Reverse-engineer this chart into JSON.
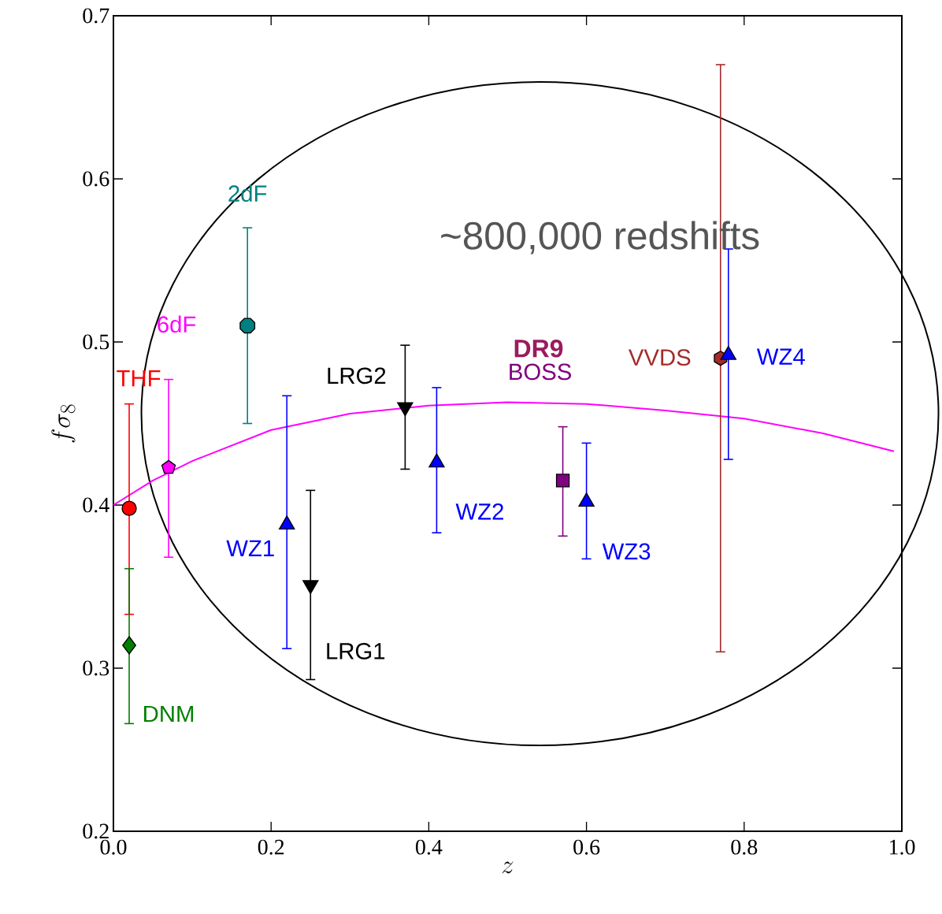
{
  "chart_data": {
    "type": "scatter",
    "xlabel": "z",
    "ylabel": "f\\sigma_8",
    "xlim": [
      0,
      1
    ],
    "ylim": [
      0.2,
      0.7
    ],
    "xticks": [
      {
        "value": 0,
        "label": "0.0"
      },
      0.2,
      0.4,
      0.6,
      0.8,
      {
        "value": 1,
        "label": "1.0"
      }
    ],
    "yticks": [
      0.2,
      0.3,
      0.4,
      0.5,
      0.6,
      0.7
    ],
    "grid": false,
    "annotations": [
      "~800,000 redshifts",
      "DR9"
    ],
    "series": [
      {
        "type": "line",
        "color": "#ff00ff",
        "marker": "none",
        "x": [
          0.0,
          0.05,
          0.1,
          0.2,
          0.3,
          0.4,
          0.5,
          0.6,
          0.7,
          0.8,
          0.9,
          0.99
        ],
        "values": [
          0.4,
          0.415,
          0.427,
          0.446,
          0.456,
          0.461,
          0.463,
          0.462,
          0.458,
          0.453,
          0.444,
          0.433
        ]
      },
      {
        "name": "THF",
        "color": "#ff0000",
        "marker": "circle",
        "x": [
          0.02
        ],
        "values": [
          0.398
        ],
        "errors": [
          [
            0.333,
            0.462
          ]
        ]
      },
      {
        "name": "DNM",
        "color": "#008000",
        "marker": "diamond",
        "x": [
          0.02
        ],
        "values": [
          0.314
        ],
        "errors": [
          [
            0.266,
            0.361
          ]
        ]
      },
      {
        "name": "6dF",
        "color": "#ff00ff",
        "x": [
          0.07
        ],
        "values": [
          0.423
        ],
        "errors": [
          [
            0.368,
            0.477
          ]
        ]
      },
      {
        "name": "2dF",
        "color": "#008080",
        "x": [
          0.17
        ],
        "values": [
          0.51
        ],
        "errors": [
          [
            0.45,
            0.57
          ]
        ]
      },
      {
        "name": "WZ1",
        "color": "#0000ff",
        "marker": "triangle",
        "x": [
          0.22
        ],
        "values": [
          0.388
        ],
        "errors": [
          [
            0.312,
            0.467
          ]
        ]
      },
      {
        "name": "LRG1",
        "color": "#000000",
        "marker": "triangle_down",
        "x": [
          0.25
        ],
        "values": [
          0.351
        ],
        "errors": [
          [
            0.293,
            0.409
          ]
        ]
      },
      {
        "name": "LRG2",
        "color": "#000000",
        "marker": "triangle_down",
        "x": [
          0.37
        ],
        "values": [
          0.46
        ],
        "errors": [
          [
            0.422,
            0.498
          ]
        ]
      },
      {
        "name": "WZ2",
        "color": "#0000ff",
        "marker": "triangle",
        "x": [
          0.41
        ],
        "values": [
          0.426
        ],
        "errors": [
          [
            0.383,
            0.472
          ]
        ]
      },
      {
        "name": "BOSS",
        "color": "#800080",
        "marker": "square",
        "x": [
          0.57
        ],
        "values": [
          0.415
        ],
        "errors": [
          [
            0.381,
            0.448
          ]
        ]
      },
      {
        "name": "WZ3",
        "color": "#0000ff",
        "marker": "triangle",
        "x": [
          0.6
        ],
        "values": [
          0.402
        ],
        "errors": [
          [
            0.367,
            0.438
          ]
        ]
      },
      {
        "name": "VVDS",
        "color": "#a52a2a",
        "x": [
          0.77
        ],
        "values": [
          0.49
        ],
        "errors": [
          [
            0.31,
            0.67
          ]
        ]
      },
      {
        "name": "WZ4",
        "color": "#0000ff",
        "marker": "triangle",
        "x": [
          0.78
        ],
        "values": [
          0.492
        ],
        "errors": [
          [
            0.428,
            0.557
          ]
        ]
      }
    ]
  }
}
